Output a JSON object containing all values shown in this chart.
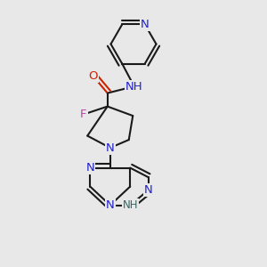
{
  "bg_color": "#e8e8e8",
  "bond_color": "#1a1a1a",
  "line_width": 1.5,
  "colors": {
    "N": "#2222cc",
    "O": "#cc2200",
    "F": "#bb44aa",
    "NH_color": "#336666",
    "C": "#1a1a1a"
  },
  "fontsize": 9.5
}
